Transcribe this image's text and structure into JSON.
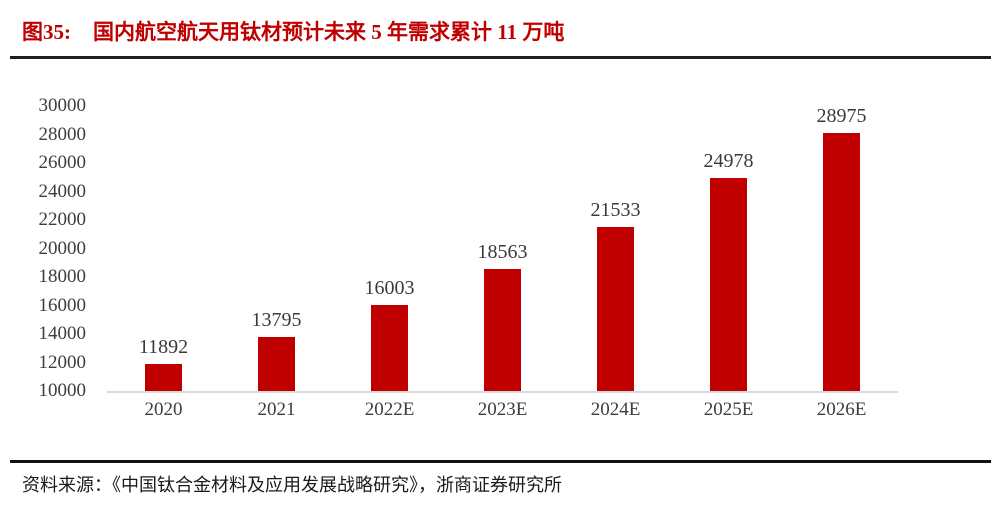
{
  "figure": {
    "tag": "图35:",
    "title": "国内航空航天用钛材预计未来 5 年需求累计 11 万吨"
  },
  "chart_data": {
    "type": "bar",
    "title": "图35: 国内航空航天用钛材预计未来 5 年需求累计 11 万吨",
    "categories": [
      "2020",
      "2021",
      "2022E",
      "2023E",
      "2024E",
      "2025E",
      "2026E"
    ],
    "values": [
      11892,
      13795,
      16003,
      18563,
      21533,
      24978,
      28975
    ],
    "xlabel": "",
    "ylabel": "",
    "ylim": [
      10000,
      30000
    ],
    "y_ticks": [
      30000,
      28000,
      26000,
      24000,
      22000,
      20000,
      18000,
      16000,
      14000,
      12000,
      10000
    ],
    "bar_color": "#c00000",
    "axis_line_color": "#d9d9d9",
    "grid": "off",
    "legend_position": "none",
    "value_labels": "above-bars"
  },
  "source": {
    "text": "资料来源：《中国钛合金材料及应用发展战略研究》，浙商证券研究所"
  },
  "colors": {
    "title_red": "#c00000",
    "bar_red": "#c00000",
    "label_gray": "#3d3d3d",
    "rule_black": "#1f1f1f",
    "axis_gray": "#d9d9d9"
  }
}
